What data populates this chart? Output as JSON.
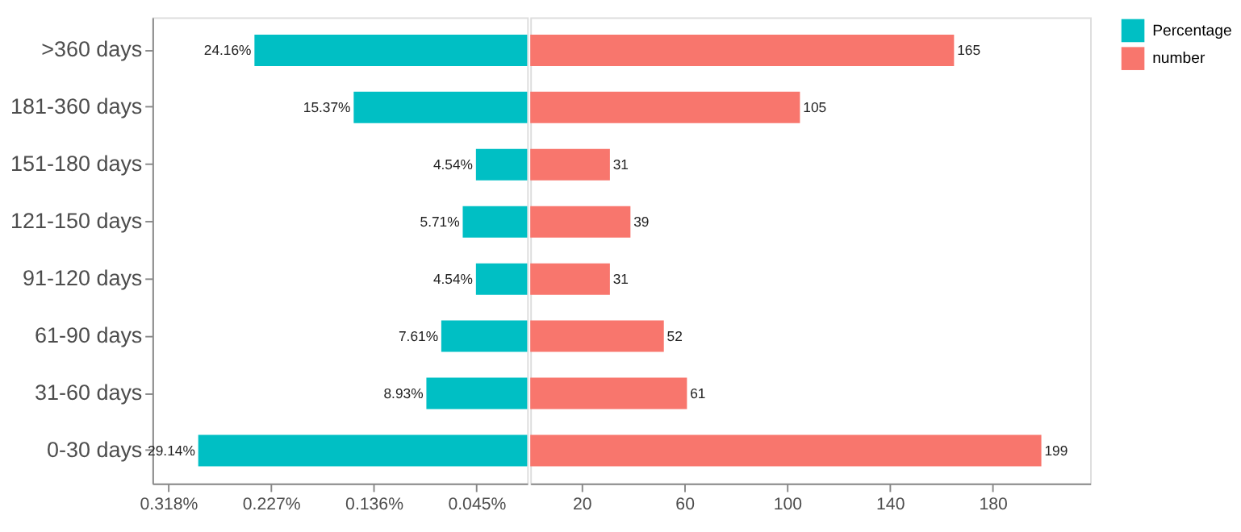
{
  "chart_data": [
    {
      "type": "bar",
      "orientation": "horizontal",
      "categories": [
        ">360 days",
        "181-360 days",
        "151-180 days",
        "121-150 days",
        "91-120 days",
        "61-90 days",
        "31-60 days",
        "0-30 days"
      ],
      "series": [
        {
          "name": "Percentage",
          "color": "#00bfc4",
          "values": [
            0.2416,
            0.1537,
            0.0454,
            0.0571,
            0.0454,
            0.0761,
            0.0893,
            0.2914
          ],
          "value_labels": [
            "24.16%",
            "15.37%",
            "4.54%",
            "5.71%",
            "4.54%",
            "7.61%",
            "8.93%",
            "29.14%"
          ]
        }
      ],
      "xlim": [
        0.332,
        0
      ],
      "xticks": [
        {
          "value": 0.318,
          "label": "0.318%"
        },
        {
          "value": 0.227,
          "label": "0.227%"
        },
        {
          "value": 0.136,
          "label": "0.136%"
        },
        {
          "value": 0.045,
          "label": "0.045%"
        }
      ],
      "grid": false
    },
    {
      "type": "bar",
      "orientation": "horizontal",
      "categories": [
        null,
        null,
        null,
        null,
        null,
        null,
        null,
        null
      ],
      "series": [
        {
          "name": "number",
          "color": "#f8766d",
          "values": [
            165,
            105,
            31,
            39,
            31,
            52,
            61,
            199
          ],
          "value_labels": [
            "165",
            "105",
            "31",
            "39",
            "31",
            "52",
            "61",
            "199"
          ]
        }
      ],
      "xlim": [
        0,
        218
      ],
      "xticks": [
        20,
        60,
        100,
        140,
        180
      ],
      "tick_labels": "x",
      "grid": false,
      "legend": "right"
    }
  ]
}
